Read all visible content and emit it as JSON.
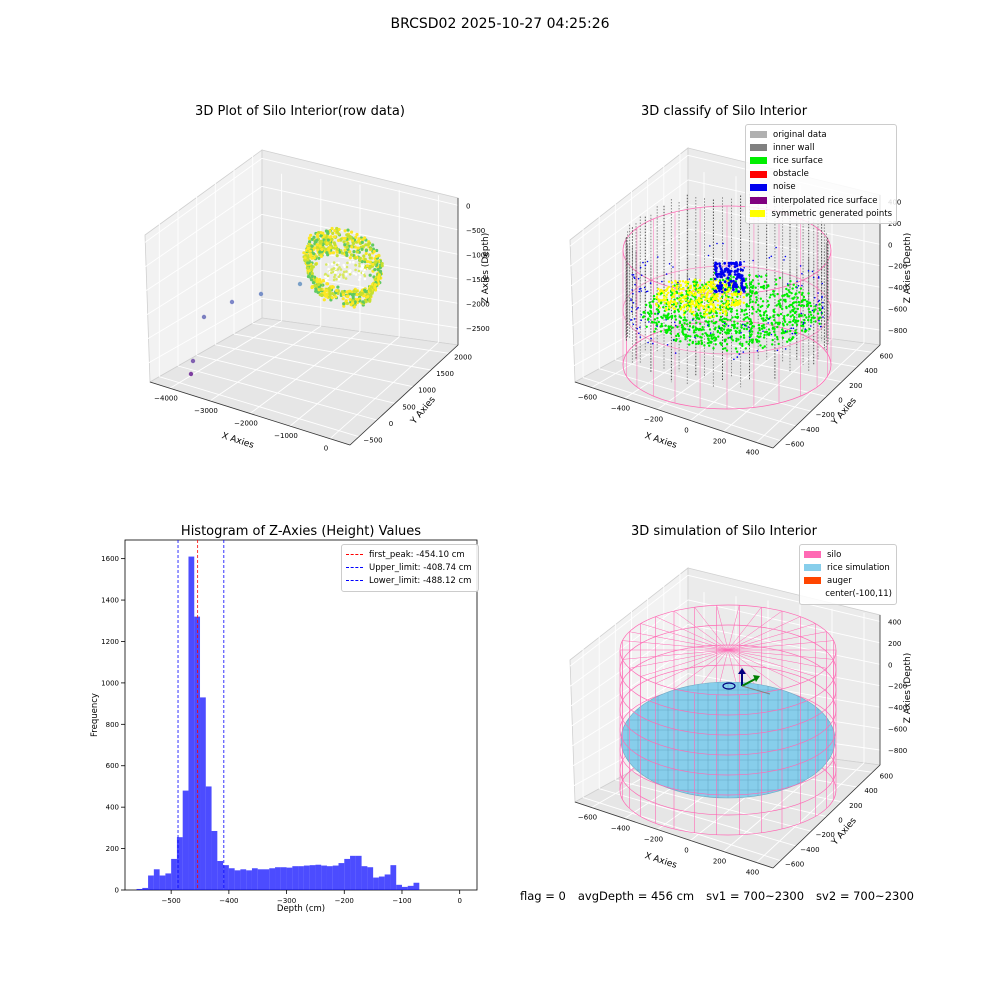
{
  "figure": {
    "suptitle": "BRCSD02 2025-10-27 04:25:26",
    "status": {
      "flag": "flag = 0",
      "avg_depth": "avgDepth = 456 cm",
      "sv1": "sv1 = 700~2300",
      "sv2": "sv2 = 700~2300"
    }
  },
  "chart_data": [
    {
      "type": "scatter",
      "title": "3D Plot of Silo Interior(row data)",
      "xlabel": "X Axies",
      "ylabel": "Y Axies",
      "zlabel": "Z Axies (Depth)",
      "xticks": [
        "−4000",
        "−3000",
        "−2000",
        "−1000",
        "0"
      ],
      "yticks": [
        "−500",
        "0",
        "500",
        "1000",
        "1500",
        "2000"
      ],
      "zticks": [
        "0",
        "−500",
        "−1000",
        "−1500",
        "−2000",
        "−2500"
      ],
      "colormap": [
        "#440154",
        "#3b528b",
        "#21918c",
        "#5ec962",
        "#fde725"
      ]
    },
    {
      "type": "scatter",
      "title": "3D classify of Silo Interior",
      "xlabel": "X Axies",
      "ylabel": "Y Axies",
      "zlabel": "Z Axies (Depth)",
      "xticks": [
        "−600",
        "−400",
        "−200",
        "0",
        "200",
        "400"
      ],
      "yticks": [
        "−600",
        "−400",
        "−200",
        "0",
        "200",
        "400",
        "600"
      ],
      "zticks": [
        "400",
        "200",
        "0",
        "−200",
        "−400",
        "−600",
        "−800"
      ],
      "legend": [
        {
          "label": "original data",
          "color": "#b0b0b0"
        },
        {
          "label": "inner wall",
          "color": "#808080"
        },
        {
          "label": "rice surface",
          "color": "#00ee00"
        },
        {
          "label": "obstacle",
          "color": "#ff0000"
        },
        {
          "label": "noise",
          "color": "#0000ee"
        },
        {
          "label": "interpolated rice surface",
          "color": "#800080"
        },
        {
          "label": "symmetric generated points",
          "color": "#ffff00"
        }
      ],
      "silo_color": "#ff69b4"
    },
    {
      "type": "bar",
      "title": "Histogram of Z-Axies (Height) Values",
      "xlabel": "Depth (cm)",
      "ylabel": "Frequency",
      "xlim": [
        -580,
        30
      ],
      "ylim": [
        0,
        1690
      ],
      "xticks": [
        -500,
        -400,
        -300,
        -200,
        -100,
        0
      ],
      "yticks": [
        0,
        200,
        400,
        600,
        800,
        1000,
        1200,
        1400,
        1600
      ],
      "bin_start": -560,
      "bin_width": 10,
      "values": [
        5,
        10,
        70,
        100,
        70,
        80,
        150,
        255,
        480,
        1610,
        1320,
        930,
        500,
        285,
        140,
        120,
        105,
        95,
        100,
        95,
        105,
        100,
        100,
        105,
        110,
        110,
        108,
        115,
        115,
        118,
        120,
        122,
        118,
        115,
        118,
        130,
        150,
        165,
        165,
        115,
        110,
        60,
        65,
        75,
        120,
        25,
        15,
        20,
        35
      ],
      "bar_color": "#0000ff",
      "vlines": [
        {
          "label": "first_peak: -454.10 cm",
          "x": -454.1,
          "color": "#ff0000"
        },
        {
          "label": "Upper_limit: -408.74 cm",
          "x": -408.74,
          "color": "#0000ff"
        },
        {
          "label": "Lower_limit: -488.12 cm",
          "x": -488.12,
          "color": "#0000ff"
        }
      ]
    },
    {
      "type": "scatter",
      "title": "3D simulation of Silo Interior",
      "xlabel": "X Axies",
      "ylabel": "Y Axies",
      "zlabel": "Z Axies (Depth)",
      "xticks": [
        "−600",
        "−400",
        "−200",
        "0",
        "200",
        "400"
      ],
      "yticks": [
        "−600",
        "−400",
        "−200",
        "0",
        "200",
        "400",
        "600"
      ],
      "zticks": [
        "400",
        "200",
        "0",
        "−200",
        "−400",
        "−600",
        "−800"
      ],
      "legend": [
        {
          "label": "silo",
          "color": "#ff69b4"
        },
        {
          "label": "rice simulation",
          "color": "#87ceeb"
        },
        {
          "label": "auger",
          "color": "#ff4500"
        },
        {
          "label": "center(-100,11)",
          "color": ""
        }
      ]
    }
  ]
}
